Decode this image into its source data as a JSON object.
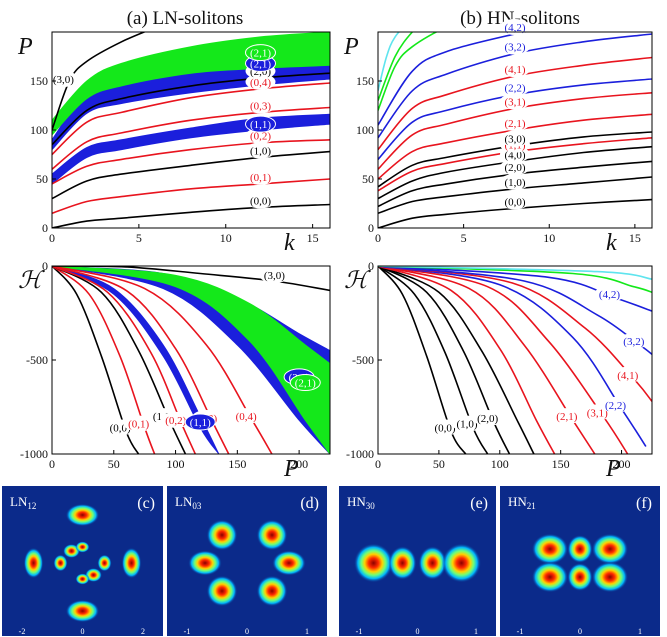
{
  "colors": {
    "black": "#000000",
    "red": "#e8141e",
    "blue": "#1b1fdc",
    "green": "#14e81a",
    "cyan": "#5fe4ee",
    "darkblue": "#0b2a8a",
    "label_blue": "#1b1fdc"
  },
  "titles": {
    "a": "(a) LN-solitons",
    "b": "(b) HN-solitons"
  },
  "chart_data": [
    {
      "id": "a_top",
      "type": "line",
      "ylabel": "P",
      "xlabel": "k",
      "xlim": [
        0,
        16
      ],
      "ylim": [
        0,
        200
      ],
      "xticks": [
        "0",
        "5",
        "10",
        "15"
      ],
      "yticks": [
        "0",
        "50",
        "100",
        "150"
      ],
      "curves": [
        {
          "label": "(0,0)",
          "color": "black",
          "x": [
            0,
            2,
            4,
            8,
            12,
            16
          ],
          "y": [
            0,
            7,
            10,
            16,
            21,
            24
          ]
        },
        {
          "label": "(0,1)",
          "color": "red",
          "x": [
            0,
            2,
            4,
            8,
            12,
            16
          ],
          "y": [
            15,
            27,
            32,
            40,
            45,
            50
          ]
        },
        {
          "label": "(1,0)",
          "color": "black",
          "x": [
            0,
            2,
            4,
            8,
            12,
            16
          ],
          "y": [
            30,
            48,
            55,
            64,
            72,
            78
          ]
        },
        {
          "label": "(0,2)",
          "color": "red",
          "x": [
            0,
            2,
            4,
            8,
            12,
            16
          ],
          "y": [
            45,
            63,
            70,
            80,
            87,
            90
          ]
        },
        {
          "label": "(0,3)",
          "color": "red",
          "x": [
            0,
            2,
            4,
            8,
            12,
            16
          ],
          "y": [
            60,
            88,
            97,
            110,
            118,
            123
          ]
        },
        {
          "label": "(0,4)",
          "color": "red",
          "x": [
            0,
            2,
            4,
            8,
            12,
            16
          ],
          "y": [
            75,
            108,
            118,
            133,
            142,
            148
          ]
        },
        {
          "label": "(2,0)",
          "color": "black",
          "x": [
            0,
            2,
            4,
            8,
            12,
            16
          ],
          "y": [
            85,
            120,
            132,
            145,
            153,
            158
          ]
        },
        {
          "label": "(3,0)",
          "color": "black",
          "x": [
            0,
            1,
            2,
            4,
            6
          ],
          "y": [
            100,
            150,
            170,
            190,
            205
          ]
        }
      ],
      "bands": [
        {
          "label": "(1,1)",
          "color": "blue",
          "x": [
            0,
            2,
            4,
            8,
            12,
            16
          ],
          "lower": [
            45,
            72,
            80,
            92,
            100,
            106
          ],
          "upper": [
            55,
            82,
            90,
            102,
            112,
            116
          ]
        },
        {
          "label": "(2,1)",
          "color": "blue",
          "x": [
            0,
            2,
            4,
            8,
            12,
            16
          ],
          "lower": [
            80,
            117,
            127,
            138,
            146,
            152
          ],
          "upper": [
            90,
            140,
            160,
            180,
            190,
            198
          ]
        },
        {
          "label": "(2,1)",
          "color": "green",
          "x": [
            0,
            2,
            4,
            8,
            12,
            16
          ],
          "lower": [
            95,
            132,
            145,
            158,
            163,
            166
          ],
          "upper": [
            110,
            150,
            168,
            185,
            195,
            200
          ]
        }
      ]
    },
    {
      "id": "b_top",
      "type": "line",
      "ylabel": "P",
      "xlabel": "k",
      "xlim": [
        0,
        16
      ],
      "ylim": [
        0,
        200
      ],
      "xticks": [
        "0",
        "5",
        "10",
        "15"
      ],
      "yticks": [
        "0",
        "50",
        "100",
        "150"
      ],
      "curves": [
        {
          "label": "(0,0)",
          "color": "black",
          "x": [
            0,
            2,
            4,
            8,
            12,
            16
          ],
          "y": [
            0,
            10,
            14,
            20,
            25,
            29
          ]
        },
        {
          "label": "(1,0)",
          "color": "black",
          "x": [
            0,
            2,
            4,
            8,
            12,
            16
          ],
          "y": [
            15,
            27,
            32,
            40,
            46,
            52
          ]
        },
        {
          "label": "(2,0)",
          "color": "black",
          "x": [
            0,
            2,
            4,
            8,
            12,
            16
          ],
          "y": [
            22,
            38,
            45,
            55,
            62,
            68
          ]
        },
        {
          "label": "(4,0)",
          "color": "black",
          "x": [
            0,
            2,
            4,
            8,
            12,
            16
          ],
          "y": [
            30,
            48,
            57,
            68,
            77,
            83
          ]
        },
        {
          "label": "(1,1)",
          "color": "red",
          "x": [
            0,
            2,
            4,
            8,
            12,
            16
          ],
          "y": [
            38,
            58,
            66,
            78,
            86,
            92
          ]
        },
        {
          "label": "(3,0)",
          "color": "black",
          "x": [
            0,
            2,
            4,
            8,
            12,
            16
          ],
          "y": [
            42,
            64,
            72,
            84,
            93,
            98
          ]
        },
        {
          "label": "(2,1)",
          "color": "red",
          "x": [
            0,
            2,
            4,
            8,
            12,
            16
          ],
          "y": [
            50,
            78,
            87,
            100,
            110,
            116
          ]
        },
        {
          "label": "(3,1)",
          "color": "red",
          "x": [
            0,
            2,
            4,
            8,
            12,
            16
          ],
          "y": [
            60,
            95,
            106,
            122,
            132,
            138
          ]
        },
        {
          "label": "(2,2)",
          "color": "blue",
          "x": [
            0,
            2,
            4,
            8,
            12,
            16
          ],
          "y": [
            70,
            108,
            120,
            136,
            146,
            152
          ]
        },
        {
          "label": "(4,1)",
          "color": "red",
          "x": [
            0,
            2,
            4,
            8,
            12,
            16
          ],
          "y": [
            80,
            122,
            136,
            155,
            166,
            174
          ]
        },
        {
          "label": "(3,2)",
          "color": "blue",
          "x": [
            0,
            2,
            4,
            8,
            12,
            16
          ],
          "y": [
            92,
            140,
            157,
            178,
            190,
            198
          ]
        },
        {
          "label": "(4,2)",
          "color": "blue",
          "x": [
            0,
            2,
            4,
            8,
            10
          ],
          "y": [
            105,
            160,
            180,
            198,
            204
          ]
        },
        {
          "label": "",
          "color": "green",
          "x": [
            0,
            1,
            2,
            4,
            6
          ],
          "y": [
            120,
            165,
            185,
            205,
            215
          ]
        },
        {
          "label": "",
          "color": "green",
          "x": [
            0,
            1,
            2,
            3
          ],
          "y": [
            130,
            175,
            200,
            215
          ]
        },
        {
          "label": "",
          "color": "cyan",
          "x": [
            0,
            0.5,
            1,
            2
          ],
          "y": [
            140,
            175,
            195,
            215
          ]
        }
      ]
    },
    {
      "id": "a_bottom",
      "type": "line",
      "ylabel": "H",
      "xlabel": "P",
      "xlim": [
        0,
        225
      ],
      "ylim": [
        -1000,
        0
      ],
      "xticks": [
        "0",
        "50",
        "100",
        "150",
        "200"
      ],
      "yticks": [
        "0",
        "-500",
        "-1000"
      ],
      "curves": [
        {
          "label": "(0,0)",
          "color": "black",
          "x": [
            0,
            20,
            40,
            60,
            70
          ],
          "y": [
            0,
            -150,
            -480,
            -880,
            -1000
          ]
        },
        {
          "label": "(0,1)",
          "color": "red",
          "x": [
            0,
            30,
            55,
            75,
            83
          ],
          "y": [
            0,
            -150,
            -480,
            -860,
            -1000
          ]
        },
        {
          "label": "(1,0)",
          "color": "black",
          "x": [
            0,
            40,
            70,
            95,
            108
          ],
          "y": [
            0,
            -140,
            -450,
            -820,
            -1000
          ]
        },
        {
          "label": "(0,2)",
          "color": "red",
          "x": [
            0,
            45,
            80,
            105,
            116
          ],
          "y": [
            0,
            -140,
            -460,
            -840,
            -1000
          ]
        },
        {
          "label": "(0,3)",
          "color": "red",
          "x": [
            0,
            60,
            100,
            130,
            143
          ],
          "y": [
            0,
            -130,
            -440,
            -830,
            -1000
          ]
        },
        {
          "label": "(0,4)",
          "color": "red",
          "x": [
            0,
            75,
            125,
            162,
            178
          ],
          "y": [
            0,
            -120,
            -420,
            -820,
            -1000
          ]
        },
        {
          "label": "(3,0)",
          "color": "black",
          "x": [
            0,
            60,
            120,
            180,
            225
          ],
          "y": [
            0,
            -5,
            -40,
            -80,
            -130
          ]
        }
      ],
      "bands": [
        {
          "label": "(1,1)",
          "color": "blue",
          "x": [
            0,
            50,
            90,
            120,
            135
          ],
          "lower": [
            0,
            -150,
            -480,
            -860,
            -1000
          ],
          "upper": [
            0,
            -120,
            -420,
            -800,
            -1000
          ]
        },
        {
          "label": "(2,1)",
          "color": "blue",
          "x": [
            0,
            90,
            150,
            200,
            225
          ],
          "lower": [
            0,
            -120,
            -420,
            -820,
            -1000
          ],
          "upper": [
            0,
            -40,
            -170,
            -360,
            -450
          ]
        },
        {
          "label": "(2,1)",
          "color": "green",
          "x": [
            0,
            100,
            160,
            205,
            225
          ],
          "lower": [
            0,
            -110,
            -400,
            -820,
            -1000
          ],
          "upper": [
            0,
            -50,
            -200,
            -420,
            -520
          ]
        }
      ]
    },
    {
      "id": "b_bottom",
      "type": "line",
      "ylabel": "H",
      "xlabel": "P",
      "xlim": [
        0,
        225
      ],
      "ylim": [
        -1000,
        0
      ],
      "xticks": [
        "0",
        "50",
        "100",
        "150",
        "200"
      ],
      "yticks": [
        "0",
        "-500",
        "-1000"
      ],
      "curves": [
        {
          "label": "(0,0)",
          "color": "black",
          "x": [
            0,
            20,
            40,
            60,
            72
          ],
          "y": [
            0,
            -150,
            -480,
            -880,
            -1000
          ]
        },
        {
          "label": "(1,0)",
          "color": "black",
          "x": [
            0,
            30,
            55,
            78,
            90
          ],
          "y": [
            0,
            -150,
            -460,
            -860,
            -1000
          ]
        },
        {
          "label": "(2,0)",
          "color": "black",
          "x": [
            0,
            40,
            70,
            95,
            108
          ],
          "y": [
            0,
            -140,
            -450,
            -830,
            -1000
          ]
        },
        {
          "label": "",
          "color": "black",
          "x": [
            0,
            50,
            85,
            115,
            128
          ],
          "y": [
            0,
            -140,
            -450,
            -830,
            -1000
          ]
        },
        {
          "label": "",
          "color": "red",
          "x": [
            0,
            60,
            100,
            130,
            145
          ],
          "y": [
            0,
            -130,
            -440,
            -820,
            -1000
          ]
        },
        {
          "label": "(2,1)",
          "color": "red",
          "x": [
            0,
            75,
            120,
            160,
            178
          ],
          "y": [
            0,
            -120,
            -420,
            -820,
            -1000
          ]
        },
        {
          "label": "(3,1)",
          "color": "red",
          "x": [
            0,
            90,
            140,
            185,
            205
          ],
          "y": [
            0,
            -110,
            -400,
            -800,
            -1000
          ]
        },
        {
          "label": "(2,2)",
          "color": "blue",
          "x": [
            0,
            100,
            160,
            200,
            220
          ],
          "y": [
            0,
            -100,
            -380,
            -760,
            -960
          ]
        },
        {
          "label": "(4,1)",
          "color": "red",
          "x": [
            0,
            110,
            170,
            210,
            225
          ],
          "y": [
            0,
            -90,
            -330,
            -600,
            -720
          ]
        },
        {
          "label": "(3,2)",
          "color": "blue",
          "x": [
            0,
            120,
            180,
            215,
            225
          ],
          "y": [
            0,
            -80,
            -260,
            -420,
            -470
          ]
        },
        {
          "label": "(4,2)",
          "color": "blue",
          "x": [
            0,
            140,
            195,
            225
          ],
          "y": [
            0,
            -60,
            -170,
            -240
          ]
        },
        {
          "label": "",
          "color": "green",
          "x": [
            0,
            160,
            210,
            225
          ],
          "y": [
            0,
            -40,
            -110,
            -140
          ]
        },
        {
          "label": "",
          "color": "cyan",
          "x": [
            0,
            180,
            225
          ],
          "y": [
            0,
            -30,
            -70
          ]
        }
      ]
    }
  ],
  "insets": [
    {
      "id": "c",
      "title": "LN",
      "sub": "12",
      "tag": "(c)",
      "ticks": [
        "-2",
        "0",
        "2"
      ]
    },
    {
      "id": "d",
      "title": "LN",
      "sub": "03",
      "tag": "(d)",
      "ticks": [
        "-1",
        "0",
        "1"
      ]
    },
    {
      "id": "e",
      "title": "HN",
      "sub": "30",
      "tag": "(e)",
      "ticks": [
        "-1",
        "0",
        "1"
      ]
    },
    {
      "id": "f",
      "title": "HN",
      "sub": "21",
      "tag": "(f)",
      "ticks": [
        "-1",
        "0",
        "1"
      ]
    }
  ]
}
